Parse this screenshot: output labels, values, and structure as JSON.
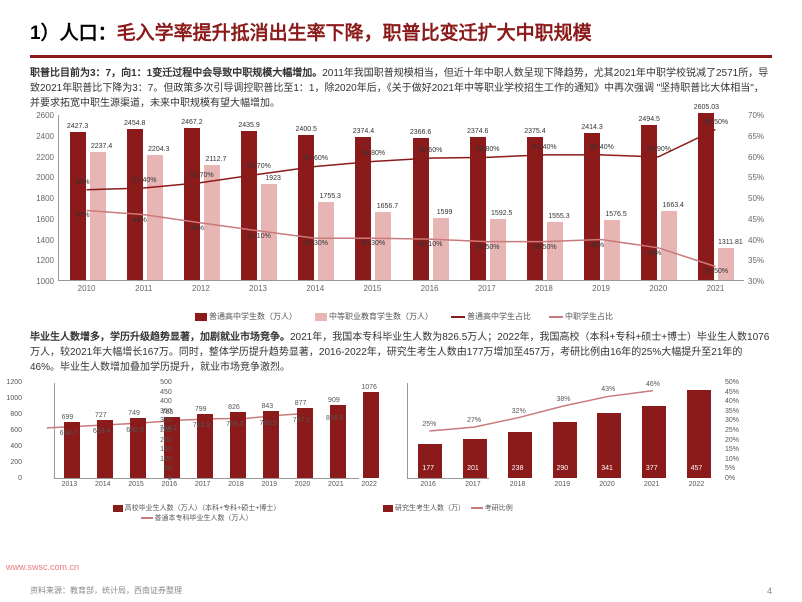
{
  "title_prefix": "1）人口：",
  "title_main": "毛入学率提升抵消出生率下降，职普比变迁扩大中职规模",
  "para1_bold": "职普比目前为3：7，向1：1变迁过程中会导致中职规模大幅增加。",
  "para1_rest": "2011年我国职普规模相当，但近十年中职人数呈现下降趋势，尤其2021年中职学校锐减了2571所，导致2021年职普比下降为3：7。但政策多次引导调控职普比至1：1，除2020年后，《关于做好2021年中等职业学校招生工作的通知》中再次强调 \"坚持职普比大体相当\"，并要求拓宽中职生源渠道，未来中职规模有望大幅增加。",
  "chart1": {
    "years": [
      "2010",
      "2011",
      "2012",
      "2013",
      "2014",
      "2015",
      "2016",
      "2017",
      "2018",
      "2019",
      "2020",
      "2021"
    ],
    "series1": [
      2427.3,
      2454.8,
      2467.2,
      2435.9,
      2400.5,
      2374.4,
      2366.6,
      2374.6,
      2375.4,
      2414.3,
      2494.5,
      2605.03
    ],
    "series2": [
      2237.4,
      2204.3,
      2112.7,
      1923,
      1755.3,
      1656.7,
      1599,
      1592.5,
      1555.3,
      1576.5,
      1663.4,
      1311.81
    ],
    "line1": [
      52.0,
      52.4,
      53.7,
      55.7,
      57.6,
      58.8,
      59.6,
      59.8,
      60.4,
      60.4,
      59.9,
      66.5
    ],
    "line2": [
      47,
      46,
      44,
      42.1,
      40.3,
      40.3,
      40.1,
      39.5,
      39.5,
      40.0,
      38,
      33.5
    ],
    "ymin": 1000,
    "ymax": 2600,
    "ystep": 200,
    "ymin_r": 30,
    "ymax_r": 70,
    "ystep_r": 5,
    "bar1_color": "#8b1a1a",
    "bar2_color": "#e8b5b5",
    "line1_color": "#8b1a1a",
    "line2_color": "#c97a7a",
    "legend": [
      "普通高中学生数（万人）",
      "中等职业教育学生数（万人）",
      "普通高中学生占比",
      "中职学生占比"
    ]
  },
  "para2_bold": "毕业生人数增多，学历升级趋势显著，加剧就业市场竞争。",
  "para2_rest": "2021年，我国本专科毕业生人数为826.5万人；2022年，我国高校（本科+专科+硕士+博士）毕业生人数1076万人，较2021年大幅增长167万。同时，整体学历提升趋势显著，2016-2022年，研究生考生人数由177万增加至457万，考研比例由16年的25%大幅提升至21年的46%。毕业生人数增加叠加学历提升，就业市场竞争激烈。",
  "chart2": {
    "years": [
      "2013",
      "2014",
      "2015",
      "2016",
      "2017",
      "2018",
      "2019",
      "2020",
      "2021",
      "2022"
    ],
    "bars": [
      699,
      727,
      749,
      765,
      799,
      826,
      843,
      877,
      909,
      1076
    ],
    "line": [
      638.7,
      659.4,
      680.9,
      704.2,
      735.8,
      753.3,
      758.5,
      797.2,
      826.5,
      null
    ],
    "ymax": 1200,
    "ystep": 200,
    "bar_color": "#8b1a1a",
    "line_color": "#c97a7a",
    "legend": [
      "高校毕业生人数（万人）（本科+专科+硕士+博士）",
      "普通本专科毕业生人数（万人）"
    ]
  },
  "chart3": {
    "years": [
      "2016",
      "2017",
      "2018",
      "2019",
      "2020",
      "2021",
      "2022"
    ],
    "bars": [
      177,
      201,
      238,
      290,
      341,
      377,
      457
    ],
    "line": [
      25,
      27,
      32,
      38,
      43,
      46,
      null
    ],
    "ymax_l": 500,
    "ystep_l": 50,
    "ymax_r": 50,
    "ystep_r": 5,
    "bar_color": "#8b1a1a",
    "line_color": "#c97a7a",
    "legend": [
      "研究生考生人数（万）",
      "考研比例"
    ]
  },
  "source": "资料来源：教育部，统计局，西南证券整理",
  "page": "4",
  "watermark": "www.swsc.com.cn"
}
